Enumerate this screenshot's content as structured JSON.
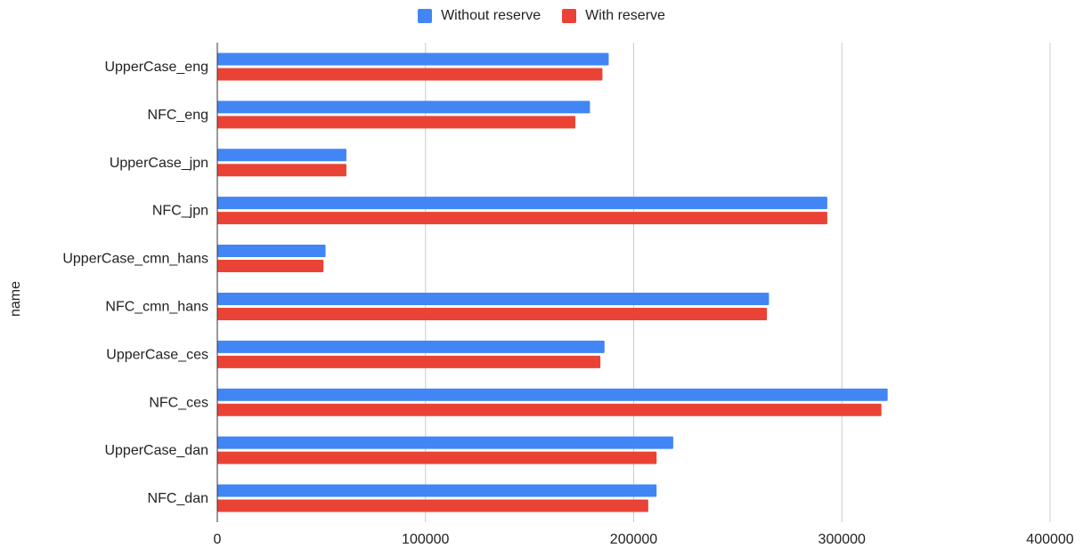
{
  "chart_data": {
    "type": "bar",
    "orientation": "horizontal",
    "title": "",
    "xlabel": "",
    "ylabel": "name",
    "xlim": [
      0,
      400000
    ],
    "x_ticks": [
      "0",
      "100000",
      "200000",
      "300000",
      "400000"
    ],
    "grid": "vertical",
    "legend_position": "top",
    "categories": [
      "UpperCase_eng",
      "NFC_eng",
      "UpperCase_jpn",
      "NFC_jpn",
      "UpperCase_cmn_hans",
      "NFC_cmn_hans",
      "UpperCase_ces",
      "NFC_ces",
      "UpperCase_dan",
      "NFC_dan"
    ],
    "series": [
      {
        "name": "Without reserve",
        "color": "#4285f4",
        "values": [
          188000,
          179000,
          62000,
          293000,
          52000,
          265000,
          186000,
          322000,
          219000,
          211000
        ]
      },
      {
        "name": "With reserve",
        "color": "#ea4335",
        "values": [
          185000,
          172000,
          62000,
          293000,
          51000,
          264000,
          184000,
          319000,
          211000,
          207000
        ]
      }
    ]
  }
}
